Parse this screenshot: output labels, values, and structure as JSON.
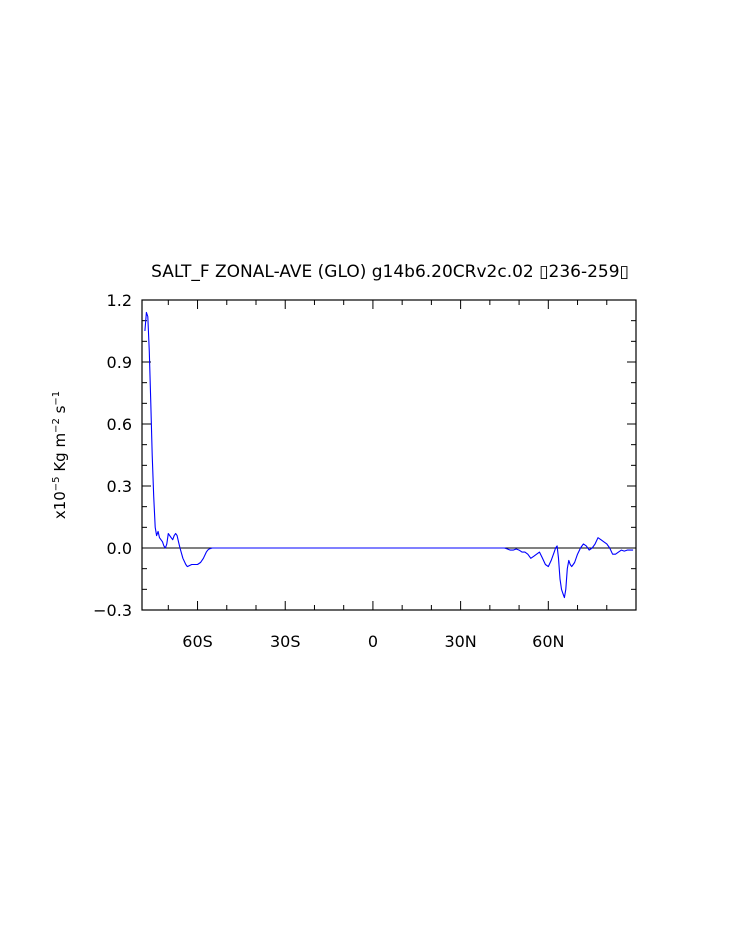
{
  "chart_data": {
    "type": "line",
    "title": "SALT_F ZONAL-AVE (GLO) g14b6.20CRv2c.02 ▯236-259▯",
    "ylabel": {
      "prefix": "x10",
      "exp": "−5",
      "unit1": "Kg m",
      "exp2": "−2",
      "unit2": "s",
      "exp3": "−1"
    },
    "xlabel": "",
    "xlim": [
      -79,
      90
    ],
    "ylim": [
      -0.3,
      1.2
    ],
    "x_ticks": [
      {
        "value": -60,
        "label": "60S"
      },
      {
        "value": -30,
        "label": "30S"
      },
      {
        "value": 0,
        "label": "0"
      },
      {
        "value": 30,
        "label": "30N"
      },
      {
        "value": 60,
        "label": "60N"
      }
    ],
    "y_ticks": [
      {
        "value": -0.3,
        "label": "−0.3"
      },
      {
        "value": 0.0,
        "label": "0.0"
      },
      {
        "value": 0.3,
        "label": "0.3"
      },
      {
        "value": 0.6,
        "label": "0.6"
      },
      {
        "value": 0.9,
        "label": "0.9"
      },
      {
        "value": 1.2,
        "label": "1.2"
      }
    ],
    "zero_line": true,
    "grid": false,
    "line_color": "#0000ff",
    "series": [
      {
        "x": [
          -78,
          -77.5,
          -77,
          -76.5,
          -76,
          -75.5,
          -75,
          -74.5,
          -74,
          -73.5,
          -73,
          -72,
          -71.5,
          -71,
          -70.5,
          -70,
          -69,
          -68.5,
          -68,
          -67.5,
          -67,
          -66.5,
          -66,
          -65,
          -64,
          -63.5,
          -62,
          -61,
          -60,
          -59,
          -58,
          -57,
          -56.5,
          -56,
          -55,
          -54,
          -50,
          -30,
          0,
          30,
          45,
          46,
          47,
          48,
          49,
          50,
          51,
          52,
          53,
          54,
          55,
          56,
          57,
          58,
          59,
          60,
          61,
          62,
          62.5,
          63,
          63.5,
          64,
          64.5,
          65,
          65.5,
          66,
          66.5,
          67,
          67.5,
          68,
          68.5,
          69,
          70,
          71,
          72,
          73,
          74,
          75,
          76,
          77,
          78,
          79,
          80,
          81,
          82,
          83,
          84,
          85,
          86,
          87,
          88,
          89
        ],
        "y": [
          1.05,
          1.14,
          1.12,
          0.95,
          0.7,
          0.45,
          0.25,
          0.1,
          0.06,
          0.08,
          0.05,
          0.03,
          0.01,
          0.0,
          0.02,
          0.07,
          0.05,
          0.04,
          0.06,
          0.07,
          0.06,
          0.03,
          0.0,
          -0.05,
          -0.08,
          -0.09,
          -0.08,
          -0.08,
          -0.08,
          -0.07,
          -0.05,
          -0.02,
          -0.01,
          -0.005,
          0.0,
          0.0,
          0.0,
          0.0,
          0.0,
          0.0,
          0.0,
          -0.005,
          -0.01,
          -0.01,
          -0.005,
          -0.01,
          -0.02,
          -0.02,
          -0.03,
          -0.05,
          -0.04,
          -0.03,
          -0.02,
          -0.05,
          -0.08,
          -0.09,
          -0.06,
          -0.02,
          0.0,
          0.01,
          -0.05,
          -0.15,
          -0.2,
          -0.22,
          -0.24,
          -0.2,
          -0.1,
          -0.06,
          -0.08,
          -0.09,
          -0.08,
          -0.07,
          -0.03,
          0.0,
          0.02,
          0.01,
          -0.01,
          0.0,
          0.02,
          0.05,
          0.04,
          0.03,
          0.02,
          0.0,
          -0.03,
          -0.03,
          -0.02,
          -0.01,
          -0.015,
          -0.01,
          -0.01,
          -0.01
        ]
      }
    ]
  }
}
